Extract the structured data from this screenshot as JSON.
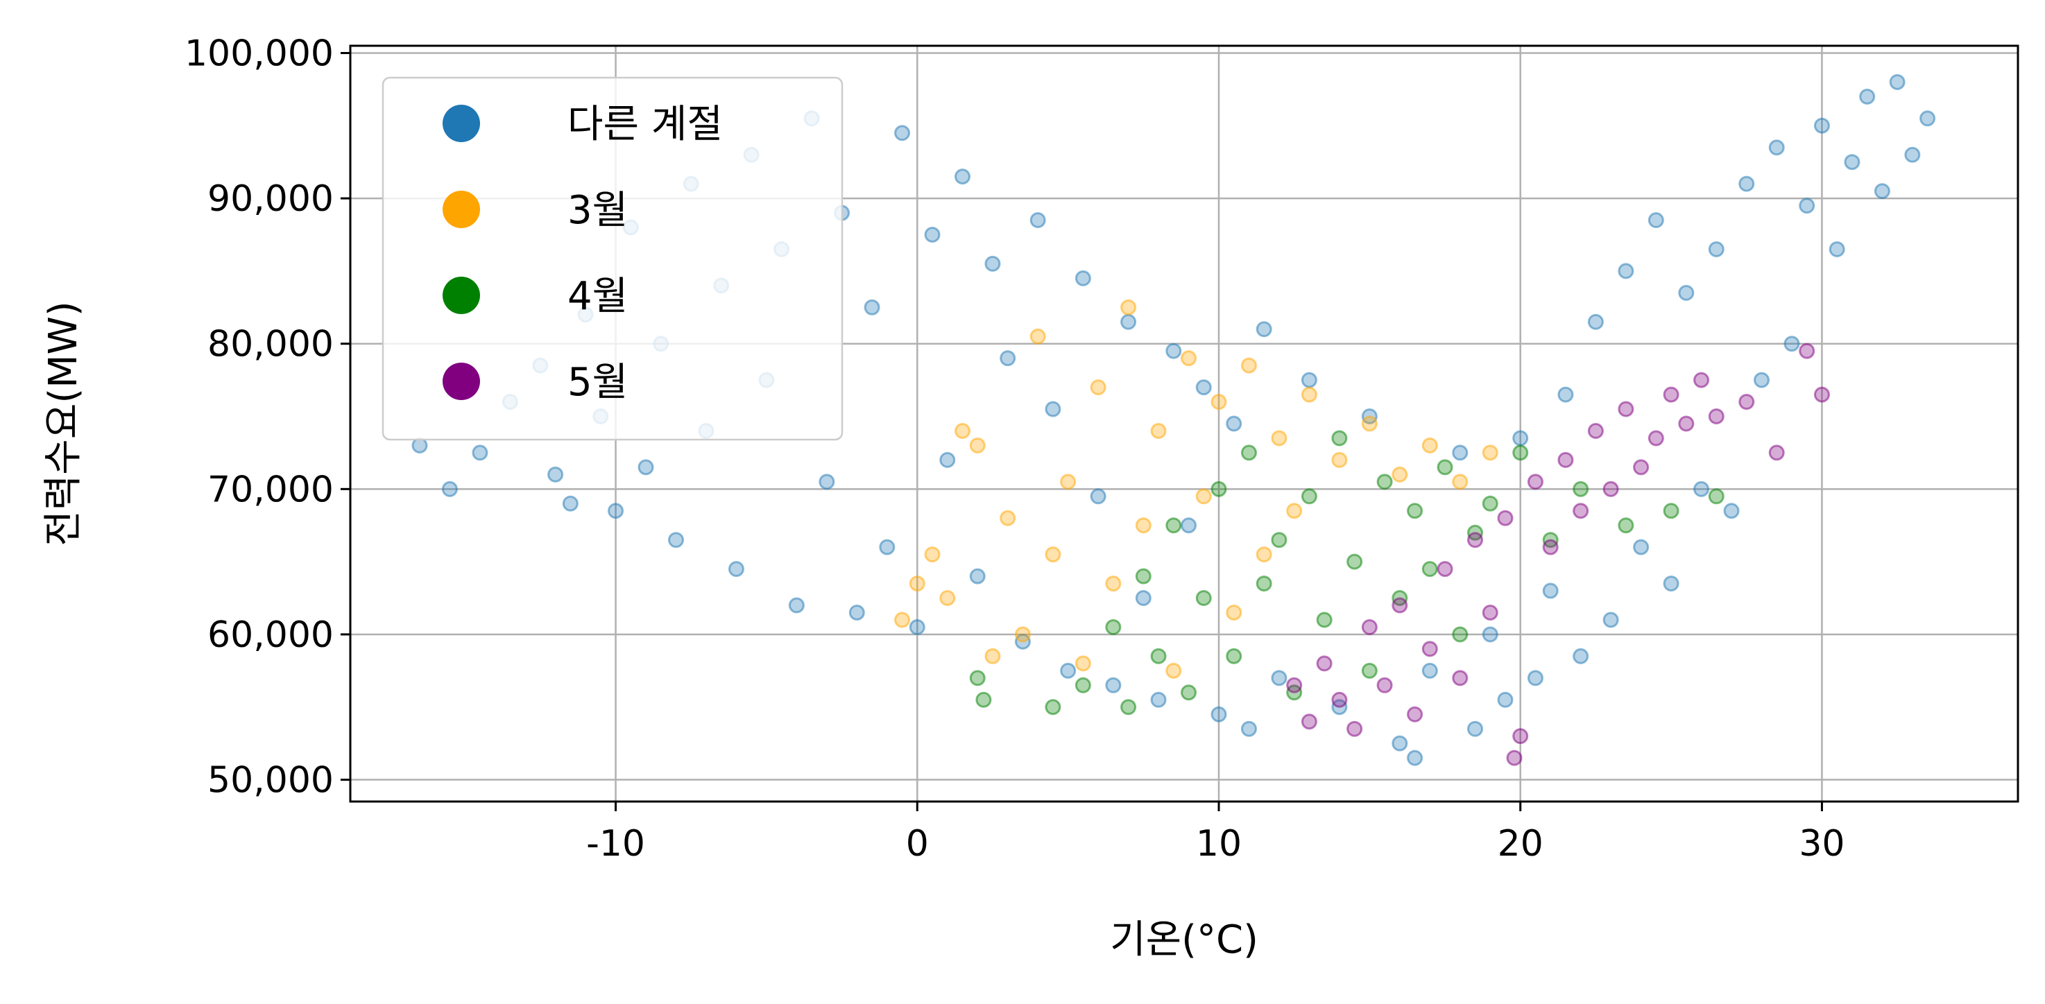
{
  "chart_data": {
    "type": "scatter",
    "xlabel": "기온(°C)",
    "ylabel": "전력수요(MW)",
    "xlim": [
      -18.8,
      36.5
    ],
    "ylim": [
      48500,
      100500
    ],
    "x_ticks": [
      -10,
      0,
      10,
      20,
      30
    ],
    "y_ticks": [
      50000,
      60000,
      70000,
      80000,
      90000,
      100000
    ],
    "x_tick_labels": [
      "-10",
      "0",
      "10",
      "20",
      "30"
    ],
    "y_tick_labels": [
      "50,000",
      "60,000",
      "70,000",
      "80,000",
      "90,000",
      "100,000"
    ],
    "grid": true,
    "legend_position": "top-left",
    "series": [
      {
        "name": "다른 계절",
        "color": "#1f77b4",
        "points": [
          [
            -16.5,
            73000
          ],
          [
            -15.5,
            70000
          ],
          [
            -14.5,
            72500
          ],
          [
            -13.5,
            76000
          ],
          [
            -12.5,
            78500
          ],
          [
            -12.0,
            71000
          ],
          [
            -11.5,
            69000
          ],
          [
            -11.0,
            82000
          ],
          [
            -10.5,
            75000
          ],
          [
            -10.0,
            68500
          ],
          [
            -9.5,
            88000
          ],
          [
            -9.0,
            71500
          ],
          [
            -8.5,
            80000
          ],
          [
            -8.0,
            66500
          ],
          [
            -7.5,
            91000
          ],
          [
            -7.0,
            74000
          ],
          [
            -6.5,
            84000
          ],
          [
            -6.0,
            64500
          ],
          [
            -5.5,
            93000
          ],
          [
            -5.0,
            77500
          ],
          [
            -4.5,
            86500
          ],
          [
            -4.0,
            62000
          ],
          [
            -3.5,
            95500
          ],
          [
            -3.0,
            70500
          ],
          [
            -2.5,
            89000
          ],
          [
            -2.0,
            61500
          ],
          [
            -1.5,
            82500
          ],
          [
            -1.0,
            66000
          ],
          [
            -0.5,
            94500
          ],
          [
            0.0,
            60500
          ],
          [
            0.5,
            87500
          ],
          [
            1.0,
            72000
          ],
          [
            1.5,
            91500
          ],
          [
            2.0,
            64000
          ],
          [
            2.5,
            85500
          ],
          [
            3.0,
            79000
          ],
          [
            3.5,
            59500
          ],
          [
            4.0,
            88500
          ],
          [
            4.5,
            75500
          ],
          [
            5.0,
            57500
          ],
          [
            5.5,
            84500
          ],
          [
            6.0,
            69500
          ],
          [
            6.5,
            56500
          ],
          [
            7.0,
            81500
          ],
          [
            7.5,
            62500
          ],
          [
            8.0,
            55500
          ],
          [
            8.5,
            79500
          ],
          [
            9.0,
            67500
          ],
          [
            9.5,
            77000
          ],
          [
            10.0,
            54500
          ],
          [
            10.5,
            74500
          ],
          [
            11.0,
            53500
          ],
          [
            11.5,
            81000
          ],
          [
            12.0,
            57000
          ],
          [
            13.0,
            77500
          ],
          [
            14.0,
            55000
          ],
          [
            15.0,
            75000
          ],
          [
            16.0,
            52500
          ],
          [
            16.5,
            51500
          ],
          [
            17.0,
            57500
          ],
          [
            18.0,
            72500
          ],
          [
            18.5,
            53500
          ],
          [
            19.0,
            60000
          ],
          [
            19.5,
            55500
          ],
          [
            20.0,
            73500
          ],
          [
            20.5,
            57000
          ],
          [
            21.0,
            63000
          ],
          [
            21.5,
            76500
          ],
          [
            22.0,
            58500
          ],
          [
            22.5,
            81500
          ],
          [
            23.0,
            61000
          ],
          [
            23.5,
            85000
          ],
          [
            24.0,
            66000
          ],
          [
            24.5,
            88500
          ],
          [
            25.0,
            63500
          ],
          [
            25.5,
            83500
          ],
          [
            26.0,
            70000
          ],
          [
            26.5,
            86500
          ],
          [
            27.0,
            68500
          ],
          [
            27.5,
            91000
          ],
          [
            28.0,
            77500
          ],
          [
            28.5,
            93500
          ],
          [
            29.0,
            80000
          ],
          [
            29.5,
            89500
          ],
          [
            30.0,
            95000
          ],
          [
            30.5,
            86500
          ],
          [
            31.0,
            92500
          ],
          [
            31.5,
            97000
          ],
          [
            32.0,
            90500
          ],
          [
            32.5,
            98000
          ],
          [
            33.0,
            93000
          ],
          [
            33.5,
            95500
          ]
        ]
      },
      {
        "name": "3월",
        "color": "#ffa500",
        "points": [
          [
            -0.5,
            61000
          ],
          [
            0.0,
            63500
          ],
          [
            0.5,
            65500
          ],
          [
            1.0,
            62500
          ],
          [
            1.5,
            74000
          ],
          [
            2.0,
            73000
          ],
          [
            2.5,
            58500
          ],
          [
            3.0,
            68000
          ],
          [
            3.5,
            60000
          ],
          [
            4.0,
            80500
          ],
          [
            4.5,
            65500
          ],
          [
            5.0,
            70500
          ],
          [
            5.5,
            58000
          ],
          [
            6.0,
            77000
          ],
          [
            6.5,
            63500
          ],
          [
            7.0,
            82500
          ],
          [
            7.5,
            67500
          ],
          [
            8.0,
            74000
          ],
          [
            8.5,
            57500
          ],
          [
            9.0,
            79000
          ],
          [
            9.5,
            69500
          ],
          [
            10.0,
            76000
          ],
          [
            10.5,
            61500
          ],
          [
            11.0,
            78500
          ],
          [
            11.5,
            65500
          ],
          [
            12.0,
            73500
          ],
          [
            12.5,
            68500
          ],
          [
            13.0,
            76500
          ],
          [
            14.0,
            72000
          ],
          [
            15.0,
            74500
          ],
          [
            16.0,
            71000
          ],
          [
            17.0,
            73000
          ],
          [
            18.0,
            70500
          ],
          [
            19.0,
            72500
          ]
        ]
      },
      {
        "name": "4월",
        "color": "#008000",
        "points": [
          [
            2.0,
            57000
          ],
          [
            2.2,
            55500
          ],
          [
            4.5,
            55000
          ],
          [
            5.5,
            56500
          ],
          [
            6.5,
            60500
          ],
          [
            7.0,
            55000
          ],
          [
            7.5,
            64000
          ],
          [
            8.0,
            58500
          ],
          [
            8.5,
            67500
          ],
          [
            9.0,
            56000
          ],
          [
            9.5,
            62500
          ],
          [
            10.0,
            70000
          ],
          [
            10.5,
            58500
          ],
          [
            11.0,
            72500
          ],
          [
            11.5,
            63500
          ],
          [
            12.0,
            66500
          ],
          [
            12.5,
            56000
          ],
          [
            13.0,
            69500
          ],
          [
            13.5,
            61000
          ],
          [
            14.0,
            73500
          ],
          [
            14.5,
            65000
          ],
          [
            15.0,
            57500
          ],
          [
            15.5,
            70500
          ],
          [
            16.0,
            62500
          ],
          [
            16.5,
            68500
          ],
          [
            17.0,
            64500
          ],
          [
            17.5,
            71500
          ],
          [
            18.0,
            60000
          ],
          [
            18.5,
            67000
          ],
          [
            19.0,
            69000
          ],
          [
            20.0,
            72500
          ],
          [
            21.0,
            66500
          ],
          [
            22.0,
            70000
          ],
          [
            23.5,
            67500
          ],
          [
            25.0,
            68500
          ],
          [
            26.5,
            69500
          ]
        ]
      },
      {
        "name": "5월",
        "color": "#800080",
        "points": [
          [
            12.5,
            56500
          ],
          [
            13.0,
            54000
          ],
          [
            13.5,
            58000
          ],
          [
            14.0,
            55500
          ],
          [
            14.5,
            53500
          ],
          [
            15.0,
            60500
          ],
          [
            15.5,
            56500
          ],
          [
            16.0,
            62000
          ],
          [
            16.5,
            54500
          ],
          [
            17.0,
            59000
          ],
          [
            17.5,
            64500
          ],
          [
            18.0,
            57000
          ],
          [
            18.5,
            66500
          ],
          [
            19.0,
            61500
          ],
          [
            19.5,
            68000
          ],
          [
            19.8,
            51500
          ],
          [
            20.0,
            53000
          ],
          [
            20.5,
            70500
          ],
          [
            21.0,
            66000
          ],
          [
            21.5,
            72000
          ],
          [
            22.0,
            68500
          ],
          [
            22.5,
            74000
          ],
          [
            23.0,
            70000
          ],
          [
            23.5,
            75500
          ],
          [
            24.0,
            71500
          ],
          [
            24.5,
            73500
          ],
          [
            25.0,
            76500
          ],
          [
            25.5,
            74500
          ],
          [
            26.0,
            77500
          ],
          [
            26.5,
            75000
          ],
          [
            27.5,
            76000
          ],
          [
            28.5,
            72500
          ],
          [
            29.5,
            79500
          ],
          [
            30.0,
            76500
          ]
        ]
      }
    ]
  }
}
